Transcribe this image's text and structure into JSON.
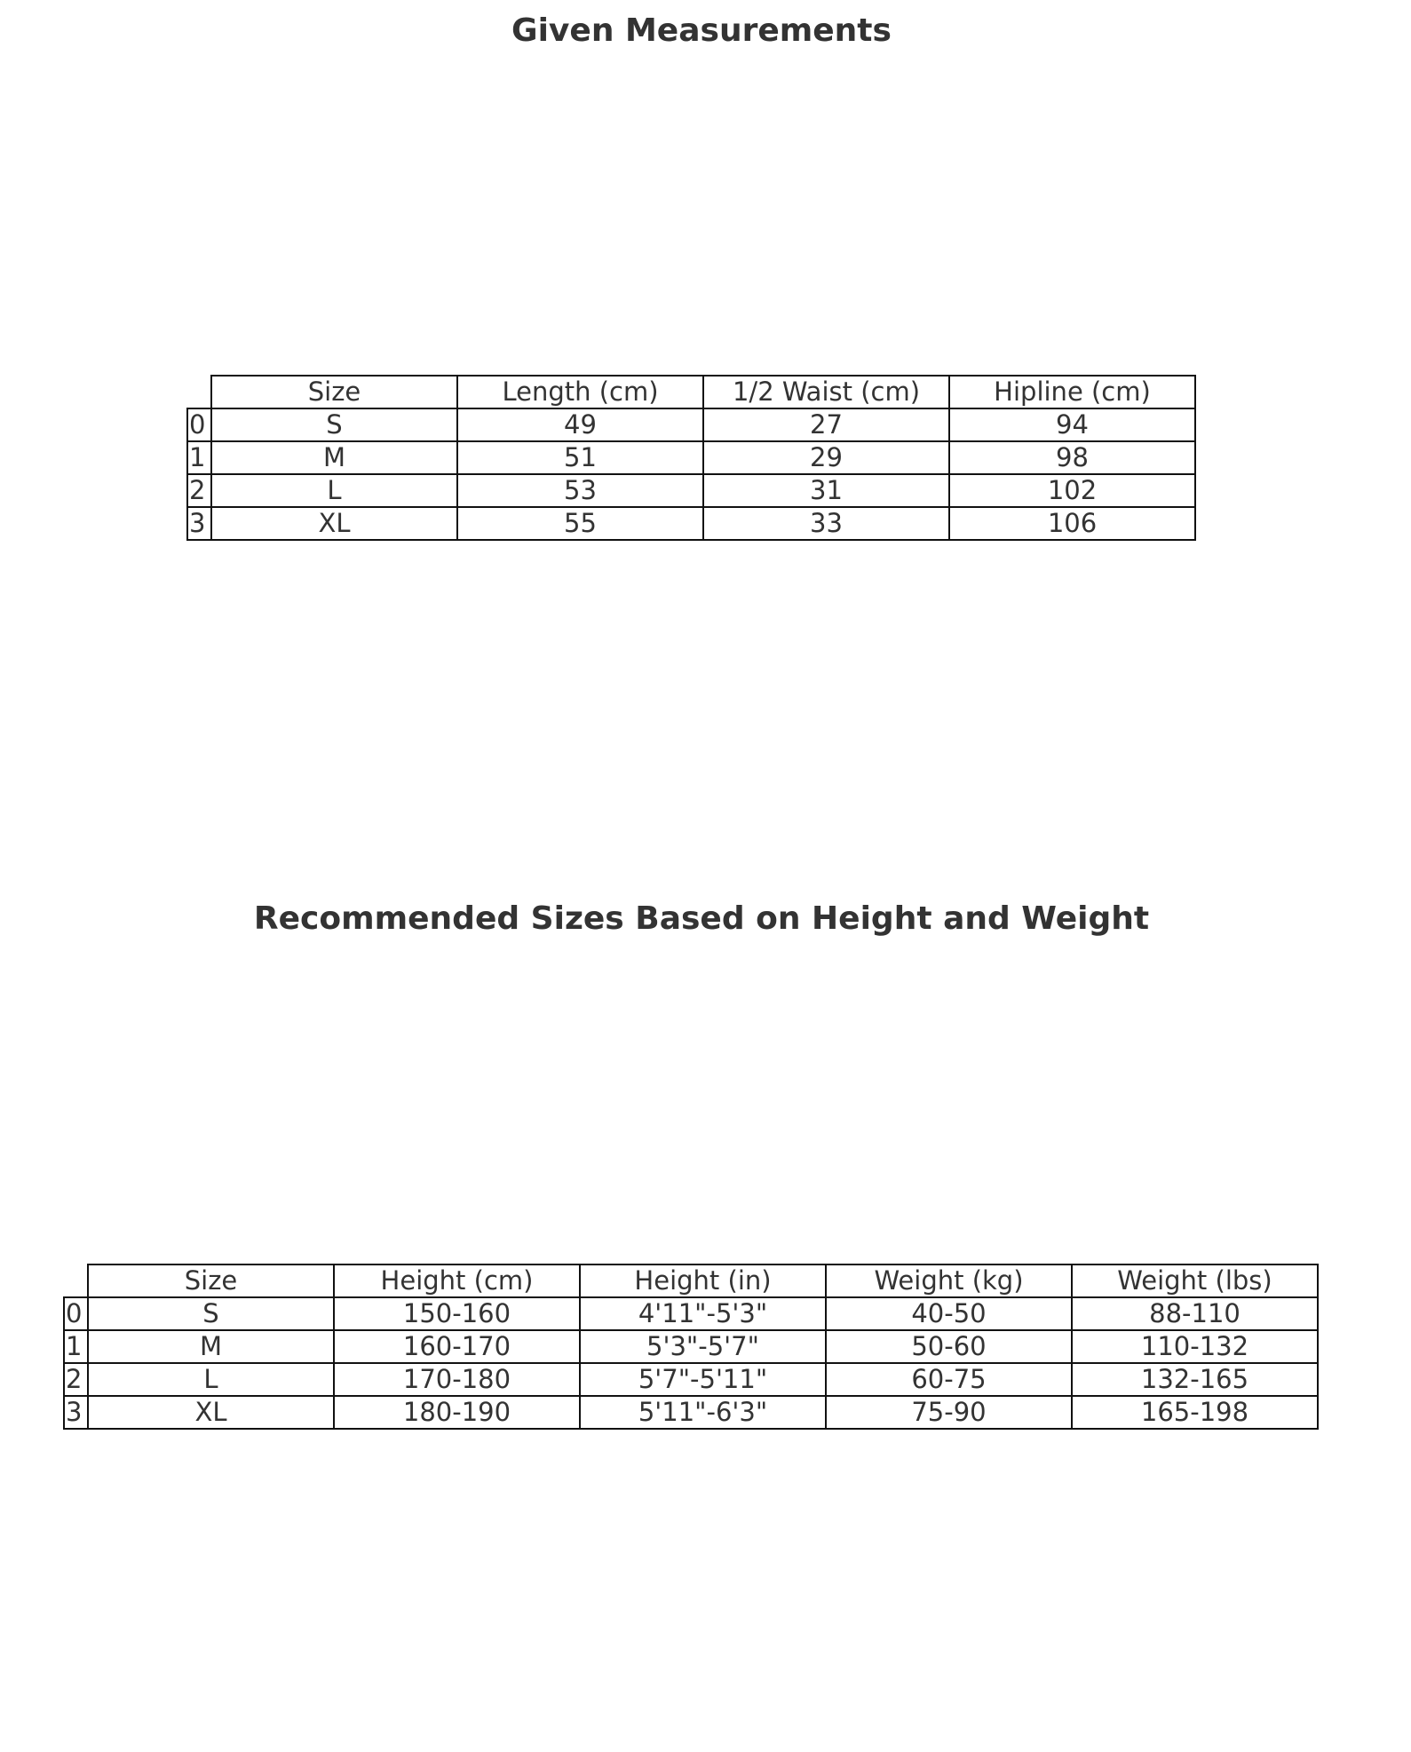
{
  "tables": [
    {
      "title": "Given Measurements",
      "columns": [
        "Size",
        "Length (cm)",
        "1/2 Waist (cm)",
        "Hipline (cm)"
      ],
      "rows": [
        {
          "index": "0",
          "cells": [
            "S",
            "49",
            "27",
            "94"
          ]
        },
        {
          "index": "1",
          "cells": [
            "M",
            "51",
            "29",
            "98"
          ]
        },
        {
          "index": "2",
          "cells": [
            "L",
            "53",
            "31",
            "102"
          ]
        },
        {
          "index": "3",
          "cells": [
            "XL",
            "55",
            "33",
            "106"
          ]
        }
      ]
    },
    {
      "title": "Recommended Sizes Based on Height and Weight",
      "columns": [
        "Size",
        "Height (cm)",
        "Height (in)",
        "Weight (kg)",
        "Weight (lbs)"
      ],
      "rows": [
        {
          "index": "0",
          "cells": [
            "S",
            "150-160",
            "4'11\"-5'3\"",
            "40-50",
            "88-110"
          ]
        },
        {
          "index": "1",
          "cells": [
            "M",
            "160-170",
            "5'3\"-5'7\"",
            "50-60",
            "110-132"
          ]
        },
        {
          "index": "2",
          "cells": [
            "L",
            "170-180",
            "5'7\"-5'11\"",
            "60-75",
            "132-165"
          ]
        },
        {
          "index": "3",
          "cells": [
            "XL",
            "180-190",
            "5'11\"-6'3\"",
            "75-90",
            "165-198"
          ]
        }
      ]
    }
  ]
}
